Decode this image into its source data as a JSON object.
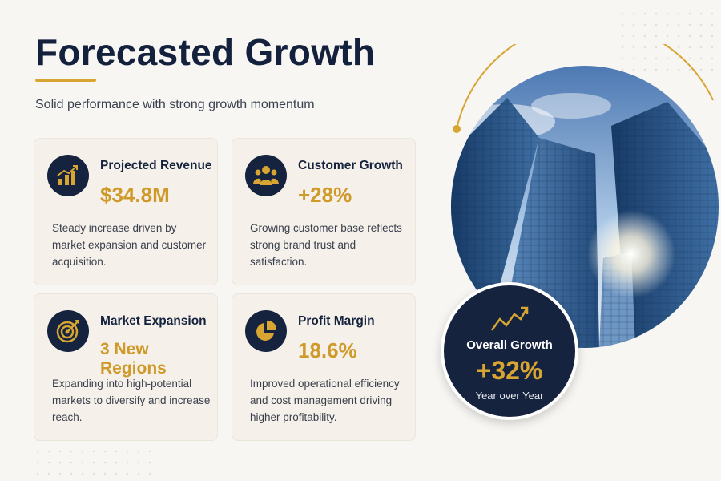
{
  "header": {
    "title": "Forecasted Growth",
    "subtitle": "Solid performance with strong growth momentum"
  },
  "cards": [
    {
      "icon": "bar-chart-growth-icon",
      "title": "Projected Revenue",
      "value": "$34.8M",
      "description": "Steady increase driven by market expansion and customer acquisition."
    },
    {
      "icon": "customers-group-icon",
      "title": "Customer Growth",
      "value": "+28%",
      "description": "Growing customer base reflects strong brand trust and satisfaction."
    },
    {
      "icon": "target-arrow-icon",
      "title": "Market Expansion",
      "value": "3 New Regions",
      "description": "Expanding into high-potential markets to diversify and increase reach."
    },
    {
      "icon": "pie-chart-icon",
      "title": "Profit Margin",
      "value": "18.6%",
      "description": "Improved operational efficiency and cost management driving higher profitability."
    }
  ],
  "highlight": {
    "icon": "trend-up-icon",
    "label": "Overall Growth",
    "value": "+32%",
    "sublabel": "Year over Year"
  },
  "colors": {
    "navy": "#15233f",
    "gold": "#d8a533",
    "background": "#f7f6f3",
    "card": "#f5f1ea"
  }
}
